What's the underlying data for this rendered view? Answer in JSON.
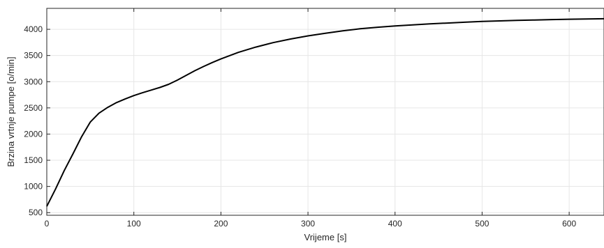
{
  "chart_data": {
    "type": "line",
    "title": "",
    "xlabel": "Vrijeme [s]",
    "ylabel": "Brzina vrtnje pumpe [o/min]",
    "xlim": [
      0,
      640
    ],
    "ylim": [
      450,
      4400
    ],
    "grid": true,
    "x_ticks": [
      0,
      100,
      200,
      300,
      400,
      500,
      600
    ],
    "y_ticks": [
      500,
      1000,
      1500,
      2000,
      2500,
      3000,
      3500,
      4000
    ],
    "line_color": "#000000",
    "grid_color": "#e6e6e6",
    "axis_color": "#262626",
    "series": [
      {
        "x": [
          0,
          10,
          20,
          30,
          40,
          50,
          60,
          70,
          80,
          90,
          100,
          110,
          120,
          130,
          140,
          150,
          160,
          170,
          180,
          190,
          200,
          220,
          240,
          260,
          280,
          300,
          320,
          340,
          360,
          380,
          400,
          420,
          440,
          460,
          480,
          500,
          520,
          540,
          560,
          580,
          600,
          620,
          640
        ],
        "y": [
          620,
          950,
          1300,
          1620,
          1950,
          2230,
          2400,
          2510,
          2600,
          2670,
          2735,
          2790,
          2840,
          2890,
          2950,
          3030,
          3120,
          3210,
          3290,
          3365,
          3435,
          3560,
          3660,
          3745,
          3815,
          3875,
          3925,
          3970,
          4010,
          4040,
          4065,
          4085,
          4105,
          4120,
          4135,
          4150,
          4160,
          4170,
          4178,
          4186,
          4192,
          4197,
          4202
        ]
      }
    ]
  }
}
